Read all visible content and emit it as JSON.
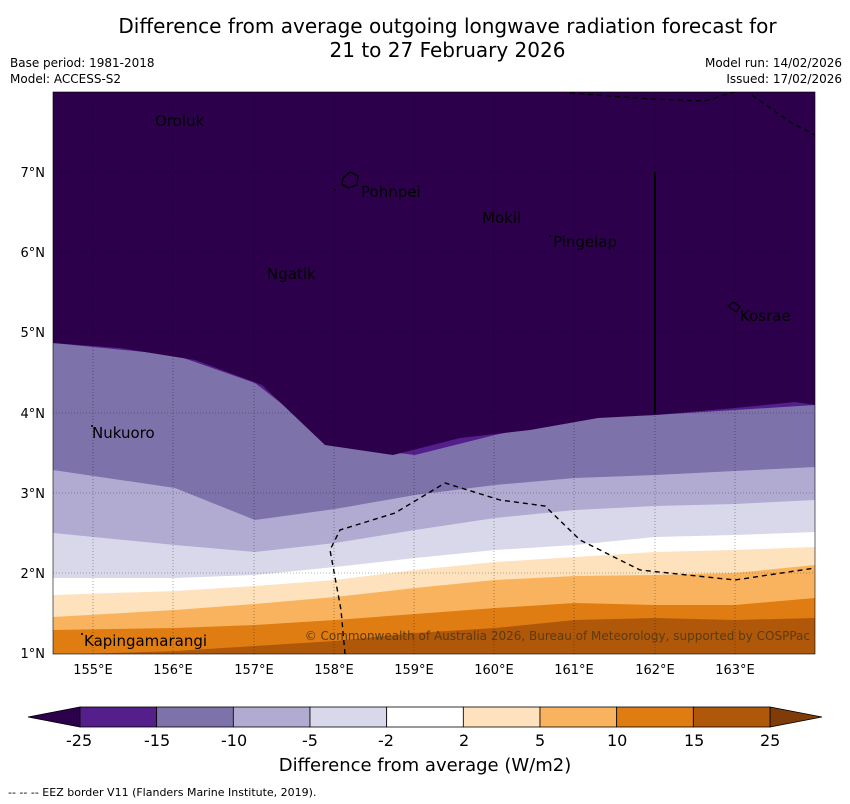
{
  "title_line1": "Difference from average outgoing longwave radiation forecast for",
  "title_line2": "21 to 27 February 2026",
  "base_period": "Base period: 1981-2018",
  "model": "Model: ACCESS-S2",
  "model_run": "Model run: 14/02/2026",
  "issued": "Issued: 17/02/2026",
  "copyright": "© Commonwealth of Australia 2026, Bureau of Meteorology, supported by COSPPac",
  "lat_labels": [
    "7°N",
    "6°N",
    "5°N",
    "4°N",
    "3°N",
    "2°N",
    "1°N"
  ],
  "lon_labels": [
    "155°E",
    "156°E",
    "157°E",
    "158°E",
    "159°E",
    "160°E",
    "161°E",
    "162°E",
    "163°E"
  ],
  "places": [
    "Oroluk",
    "Pohnpei",
    "Mokil",
    "Pingelap",
    "Ngatik",
    "Kosrae",
    "Nukuoro",
    "Kapingamarangi"
  ],
  "colorbar": {
    "ticks": [
      "-25",
      "-15",
      "-10",
      "-5",
      "-2",
      "2",
      "5",
      "10",
      "15",
      "25"
    ],
    "colors": [
      "#541f8a",
      "#7e72aa",
      "#b1abd2",
      "#d9d8eb",
      "#ffffff",
      "#fde2bd",
      "#f9b35e",
      "#df7d13",
      "#b05809"
    ],
    "under_color": "#2d004b",
    "over_color": "#7f3b08",
    "label": "Difference from average (W/m2)"
  },
  "footer": "--  --  -- EEZ border V11 (Flanders Marine Institute, 2019)."
}
